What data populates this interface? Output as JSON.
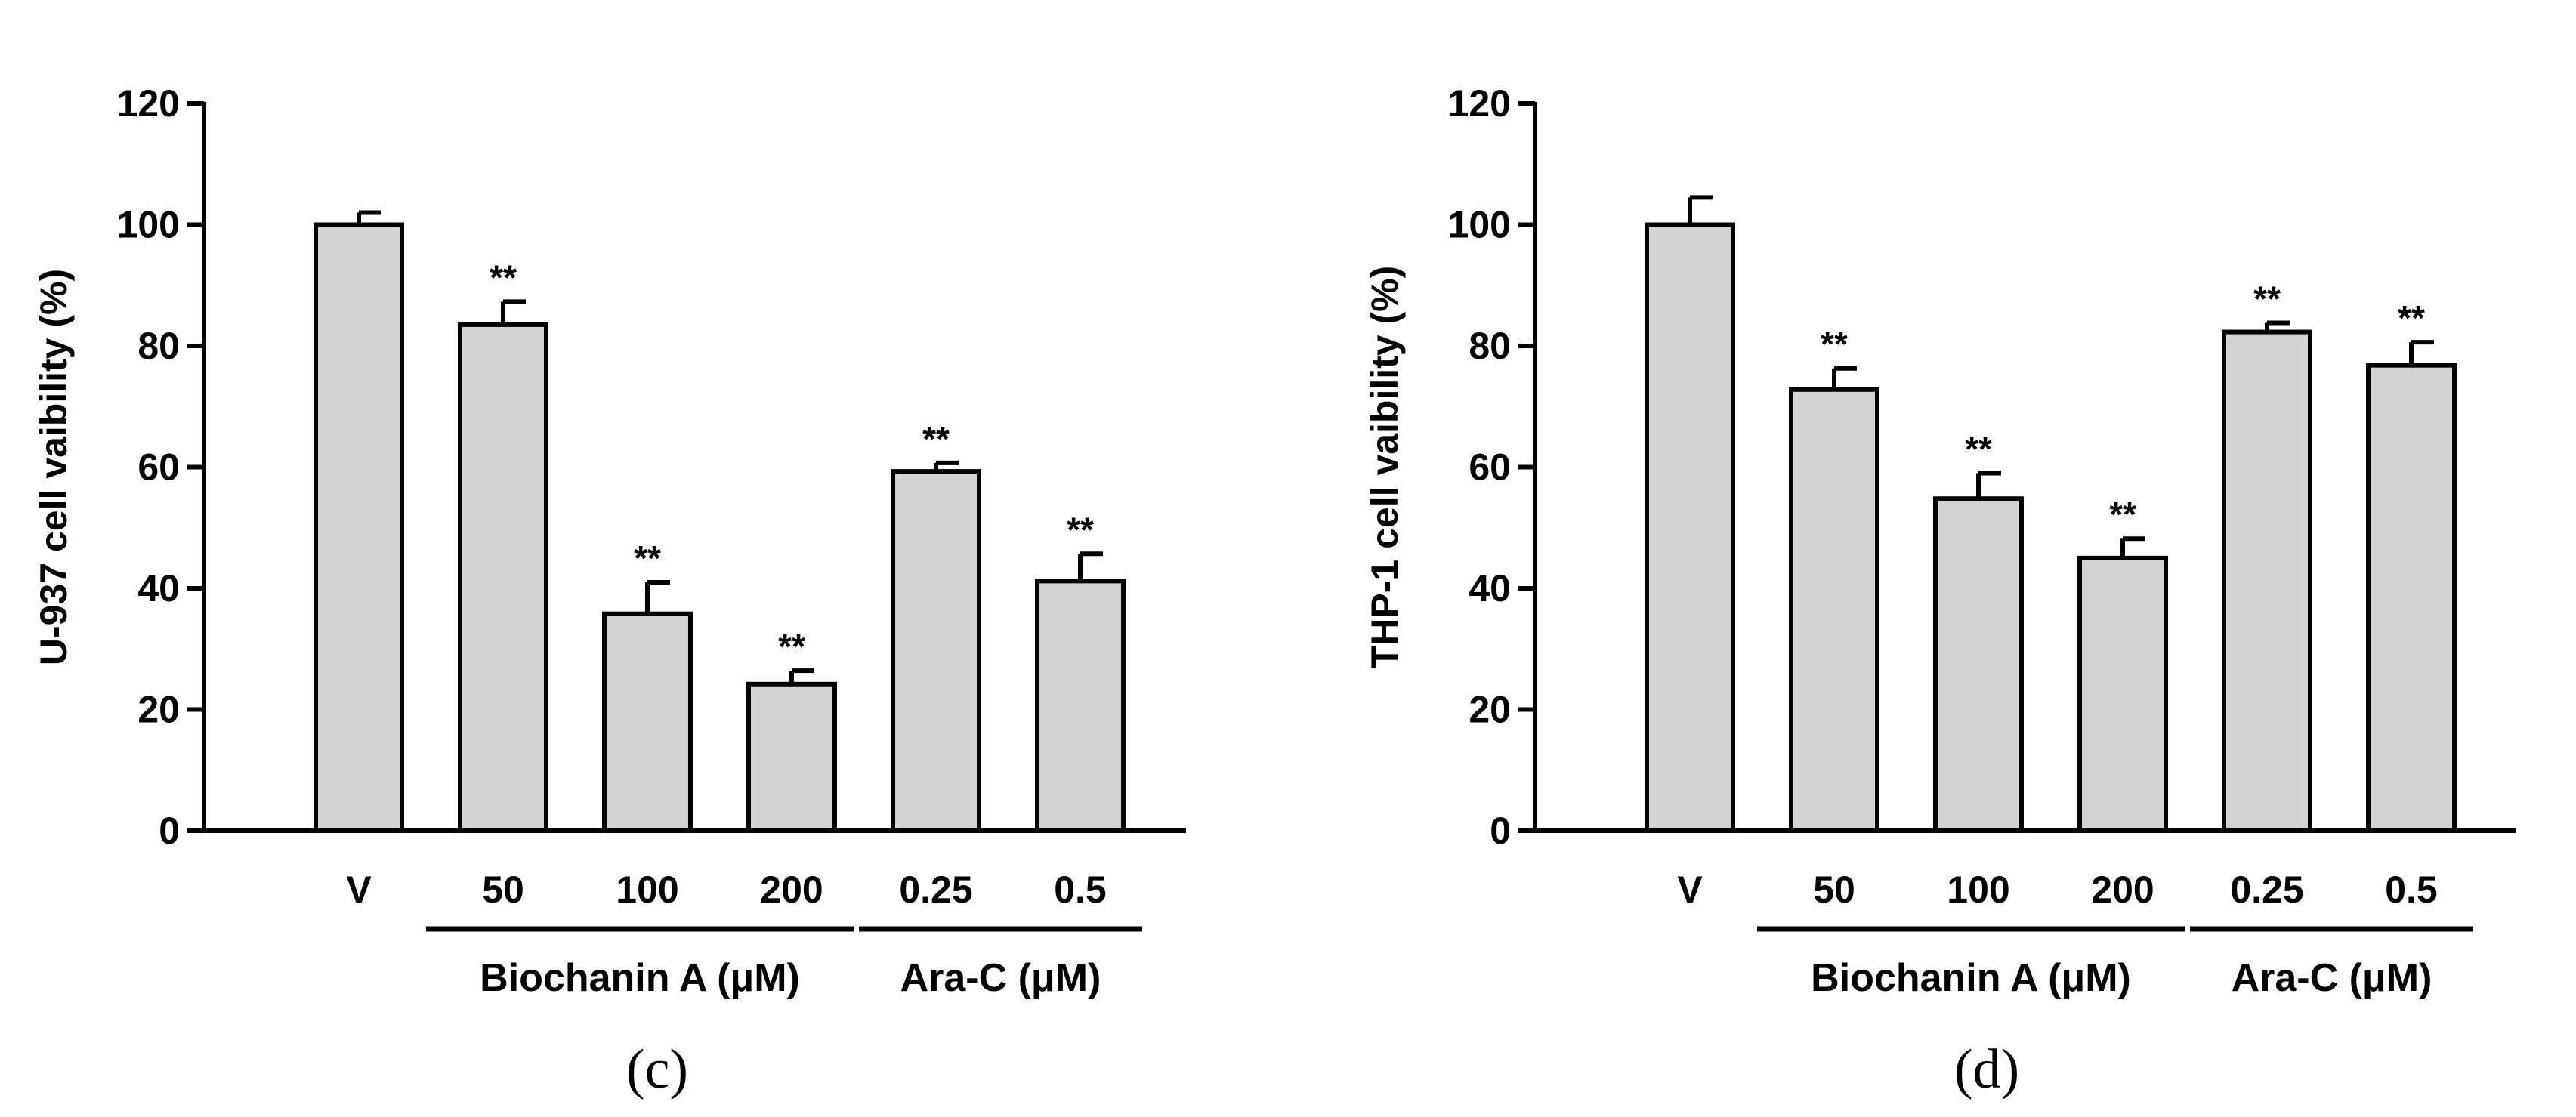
{
  "chart_data": [
    {
      "type": "bar",
      "panel_label": "(c)",
      "ylabel": "U-937 cell vaibility (%)",
      "ylim": [
        0,
        120
      ],
      "yticks": [
        "0",
        "20",
        "40",
        "60",
        "80",
        "100",
        "120"
      ],
      "categories": [
        "V",
        "50",
        "100",
        "200",
        "0.25",
        "0.5"
      ],
      "values": [
        100,
        83.5,
        35.8,
        24.2,
        59.3,
        41.2
      ],
      "errors": [
        2.0,
        3.8,
        5.2,
        2.2,
        1.4,
        4.5
      ],
      "annotations": [
        "",
        "**",
        "**",
        "**",
        "**",
        "**"
      ],
      "groups": [
        {
          "label": "Biochanin A (μM)",
          "start": 1,
          "end": 3
        },
        {
          "label": "Ara-C (μM)",
          "start": 4,
          "end": 5
        }
      ],
      "bar_color": "#d3d3d3"
    },
    {
      "type": "bar",
      "panel_label": "(d)",
      "ylabel": "THP-1 cell vaibility (%)",
      "ylim": [
        0,
        120
      ],
      "yticks": [
        "0",
        "20",
        "40",
        "60",
        "80",
        "100",
        "120"
      ],
      "categories": [
        "V",
        "50",
        "100",
        "200",
        "0.25",
        "0.5"
      ],
      "values": [
        100,
        72.8,
        54.8,
        45.0,
        82.3,
        76.8
      ],
      "errors": [
        4.5,
        3.5,
        4.2,
        3.2,
        1.5,
        3.8
      ],
      "annotations": [
        "",
        "**",
        "**",
        "**",
        "**",
        "**"
      ],
      "groups": [
        {
          "label": "Biochanin A (μM)",
          "start": 1,
          "end": 3
        },
        {
          "label": "Ara-C (μM)",
          "start": 4,
          "end": 5
        }
      ],
      "bar_color": "#d3d3d3"
    }
  ]
}
